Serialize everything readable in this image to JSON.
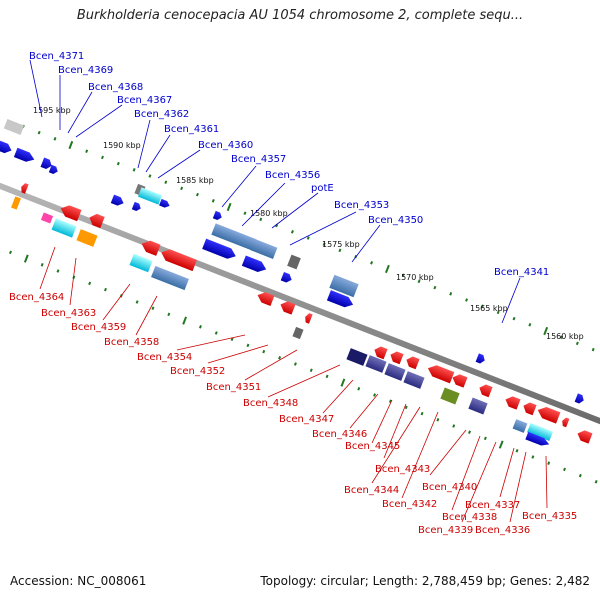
{
  "title": "Burkholderia cenocepacia AU 1054 chromosome 2, complete sequ...",
  "footer": {
    "accession": "Accession: NC_008061",
    "summary": "Topology: circular; Length: 2,788,459 bp; Genes: 2,482"
  },
  "colors": {
    "plus_label": "#0000cc",
    "minus_label": "#cc0000",
    "backbone": "#808080",
    "tick": "#227722"
  },
  "kbp_marks": [
    "1595 kbp",
    "1590 kbp",
    "1585 kbp",
    "1580 kbp",
    "1575 kbp",
    "1570 kbp",
    "1565 kbp",
    "1560 kbp"
  ],
  "plus_labels": [
    "Bcen_4371",
    "Bcen_4369",
    "Bcen_4368",
    "Bcen_4367",
    "Bcen_4362",
    "Bcen_4361",
    "Bcen_4360",
    "Bcen_4357",
    "Bcen_4356",
    "potE",
    "Bcen_4353",
    "Bcen_4350",
    "Bcen_4341"
  ],
  "minus_labels": [
    "Bcen_4364",
    "Bcen_4363",
    "Bcen_4359",
    "Bcen_4358",
    "Bcen_4354",
    "Bcen_4352",
    "Bcen_4351",
    "Bcen_4348",
    "Bcen_4347",
    "Bcen_4346",
    "Bcen_4345",
    "Bcen_4344",
    "Bcen_4343",
    "Bcen_4342",
    "Bcen_4340",
    "Bcen_4339",
    "Bcen_4338",
    "Bcen_4337",
    "Bcen_4336",
    "Bcen_4335"
  ]
}
